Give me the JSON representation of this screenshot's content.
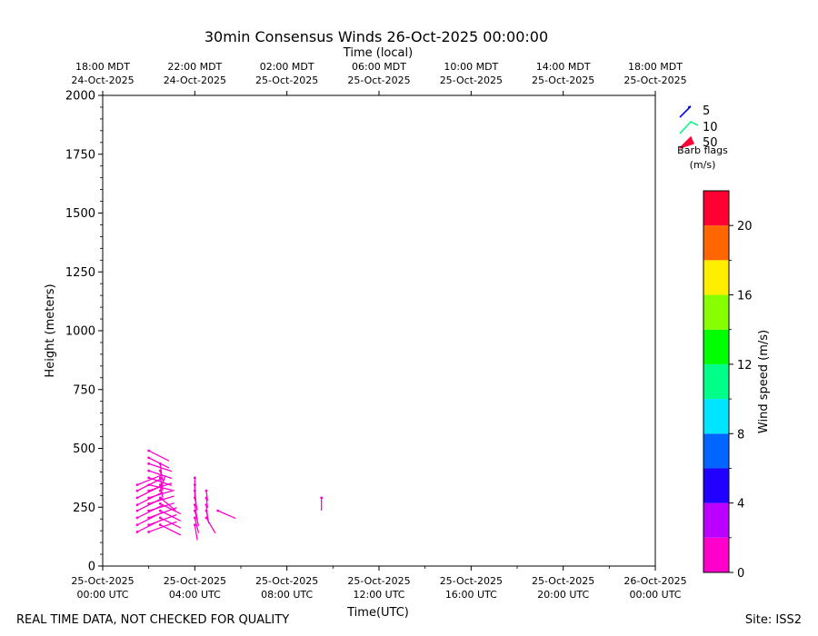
{
  "chart_data": {
    "type": "wind-barb",
    "title": "30min Consensus Winds 26-Oct-2025 00:00:00",
    "top_axis_label": "Time (local)",
    "xlabel": "Time(UTC)",
    "ylabel": "Height (meters)",
    "xlim": [
      0,
      24
    ],
    "ylim": [
      0,
      2000
    ],
    "x_unit": "hours after 25-Oct-2025 00:00 UTC",
    "yticks": [
      0,
      250,
      500,
      750,
      1000,
      1250,
      1500,
      1750,
      2000
    ],
    "ytick_labels": [
      "0",
      "250",
      "500",
      "750",
      "1000",
      "1250",
      "1500",
      "1750",
      "2000"
    ],
    "bottom_ticks": [
      {
        "x": 0,
        "line1": "25-Oct-2025",
        "line2": "00:00 UTC"
      },
      {
        "x": 4,
        "line1": "25-Oct-2025",
        "line2": "04:00 UTC"
      },
      {
        "x": 8,
        "line1": "25-Oct-2025",
        "line2": "08:00 UTC"
      },
      {
        "x": 12,
        "line1": "25-Oct-2025",
        "line2": "12:00 UTC"
      },
      {
        "x": 16,
        "line1": "25-Oct-2025",
        "line2": "16:00 UTC"
      },
      {
        "x": 20,
        "line1": "25-Oct-2025",
        "line2": "20:00 UTC"
      },
      {
        "x": 24,
        "line1": "26-Oct-2025",
        "line2": "00:00 UTC"
      }
    ],
    "top_ticks": [
      {
        "x": 0,
        "line1": "18:00 MDT",
        "line2": "24-Oct-2025"
      },
      {
        "x": 4,
        "line1": "22:00 MDT",
        "line2": "24-Oct-2025"
      },
      {
        "x": 8,
        "line1": "02:00 MDT",
        "line2": "25-Oct-2025"
      },
      {
        "x": 12,
        "line1": "06:00 MDT",
        "line2": "25-Oct-2025"
      },
      {
        "x": 16,
        "line1": "10:00 MDT",
        "line2": "25-Oct-2025"
      },
      {
        "x": 20,
        "line1": "14:00 MDT",
        "line2": "25-Oct-2025"
      },
      {
        "x": 24,
        "line1": "18:00 MDT",
        "line2": "25-Oct-2025"
      }
    ],
    "legend": {
      "entries": [
        {
          "label": "5",
          "color": "#0000ff"
        },
        {
          "label": "10",
          "color": "#00ff80"
        },
        {
          "label": "50",
          "color": "#ff0033"
        }
      ],
      "caption_line1": "Barb flags",
      "caption_line2": "(m/s)",
      "placement": "upper-right outside plot"
    },
    "colorbar": {
      "label": "Wind speed (m/s)",
      "range": [
        0,
        22
      ],
      "ticks": [
        0,
        4,
        8,
        12,
        16,
        20
      ],
      "tick_labels": [
        "0",
        "4",
        "8",
        "12",
        "16",
        "20"
      ],
      "bands": [
        {
          "from": 0,
          "to": 2,
          "color": "#ff00cc"
        },
        {
          "from": 2,
          "to": 4,
          "color": "#bb00ff"
        },
        {
          "from": 4,
          "to": 6,
          "color": "#2200ff"
        },
        {
          "from": 6,
          "to": 8,
          "color": "#0066ff"
        },
        {
          "from": 8,
          "to": 10,
          "color": "#00e5ff"
        },
        {
          "from": 10,
          "to": 12,
          "color": "#00ff88"
        },
        {
          "from": 12,
          "to": 14,
          "color": "#00ff00"
        },
        {
          "from": 14,
          "to": 16,
          "color": "#88ff00"
        },
        {
          "from": 16,
          "to": 18,
          "color": "#ffee00"
        },
        {
          "from": 18,
          "to": 20,
          "color": "#ff6600"
        },
        {
          "from": 20,
          "to": 22,
          "color": "#ff0033"
        }
      ]
    },
    "barb_color": "#ff00cc",
    "barbs": [
      {
        "x": 1.5,
        "y": 145,
        "u": 1.0,
        "v": 0.5
      },
      {
        "x": 1.5,
        "y": 175,
        "u": 1.0,
        "v": 0.5
      },
      {
        "x": 1.5,
        "y": 205,
        "u": 1.0,
        "v": 0.5
      },
      {
        "x": 1.5,
        "y": 235,
        "u": 1.0,
        "v": 0.5
      },
      {
        "x": 1.5,
        "y": 260,
        "u": 1.0,
        "v": 0.5
      },
      {
        "x": 1.5,
        "y": 290,
        "u": 1.0,
        "v": 0.5
      },
      {
        "x": 1.5,
        "y": 320,
        "u": 1.0,
        "v": 0.5
      },
      {
        "x": 1.5,
        "y": 345,
        "u": 1.0,
        "v": 0.4
      },
      {
        "x": 2.0,
        "y": 145,
        "u": 1.1,
        "v": 0.4
      },
      {
        "x": 2.0,
        "y": 175,
        "u": 1.1,
        "v": 0.4
      },
      {
        "x": 2.0,
        "y": 205,
        "u": 1.1,
        "v": 0.4
      },
      {
        "x": 2.0,
        "y": 235,
        "u": 1.0,
        "v": 0.3
      },
      {
        "x": 2.0,
        "y": 265,
        "u": 1.0,
        "v": 0.3
      },
      {
        "x": 2.0,
        "y": 290,
        "u": 1.0,
        "v": 0.3
      },
      {
        "x": 2.0,
        "y": 320,
        "u": 0.9,
        "v": 0.3
      },
      {
        "x": 2.0,
        "y": 345,
        "u": 0.9,
        "v": -0.2
      },
      {
        "x": 2.0,
        "y": 375,
        "u": 0.9,
        "v": -0.3
      },
      {
        "x": 2.0,
        "y": 405,
        "u": 0.9,
        "v": -0.3
      },
      {
        "x": 2.0,
        "y": 435,
        "u": 0.9,
        "v": -0.3
      },
      {
        "x": 2.0,
        "y": 460,
        "u": 0.8,
        "v": -0.4
      },
      {
        "x": 2.0,
        "y": 490,
        "u": 0.8,
        "v": -0.4
      },
      {
        "x": 2.5,
        "y": 175,
        "u": 0.8,
        "v": -0.4
      },
      {
        "x": 2.5,
        "y": 205,
        "u": 0.8,
        "v": -0.4
      },
      {
        "x": 2.5,
        "y": 235,
        "u": 0.8,
        "v": -0.4
      },
      {
        "x": 2.5,
        "y": 265,
        "u": 0.8,
        "v": -0.4
      },
      {
        "x": 2.5,
        "y": 290,
        "u": 0.6,
        "v": -0.5
      },
      {
        "x": 2.5,
        "y": 320,
        "u": 0.2,
        "v": 0.6
      },
      {
        "x": 2.5,
        "y": 345,
        "u": 0.1,
        "v": -0.5
      },
      {
        "x": 2.5,
        "y": 375,
        "u": 0.1,
        "v": -0.5
      },
      {
        "x": 2.5,
        "y": 405,
        "u": 0.1,
        "v": -0.4
      },
      {
        "x": 2.5,
        "y": 435,
        "u": 0.05,
        "v": -0.4
      },
      {
        "x": 4.0,
        "y": 175,
        "u": 0.1,
        "v": -0.6
      },
      {
        "x": 4.0,
        "y": 205,
        "u": 0.15,
        "v": -0.6
      },
      {
        "x": 4.0,
        "y": 235,
        "u": 0.15,
        "v": -0.6
      },
      {
        "x": 4.0,
        "y": 260,
        "u": 0.1,
        "v": -0.6
      },
      {
        "x": 4.0,
        "y": 290,
        "u": 0.1,
        "v": -0.5
      },
      {
        "x": 4.0,
        "y": 320,
        "u": 0.05,
        "v": -0.5
      },
      {
        "x": 4.0,
        "y": 345,
        "u": 0.0,
        "v": -0.5
      },
      {
        "x": 4.0,
        "y": 375,
        "u": 0.0,
        "v": -0.4
      },
      {
        "x": 4.5,
        "y": 205,
        "u": 0.35,
        "v": -0.6
      },
      {
        "x": 4.5,
        "y": 235,
        "u": 0.1,
        "v": -0.5
      },
      {
        "x": 4.5,
        "y": 260,
        "u": 0.05,
        "v": -0.5
      },
      {
        "x": 4.5,
        "y": 290,
        "u": 0.05,
        "v": -0.4
      },
      {
        "x": 4.5,
        "y": 320,
        "u": 0.05,
        "v": -0.4
      },
      {
        "x": 5.0,
        "y": 235,
        "u": 0.7,
        "v": -0.3
      },
      {
        "x": 9.5,
        "y": 290,
        "u": 0.0,
        "v": -0.5
      }
    ]
  },
  "footer_left": "REAL TIME DATA, NOT CHECKED FOR QUALITY",
  "footer_right": "Site: ISS2"
}
